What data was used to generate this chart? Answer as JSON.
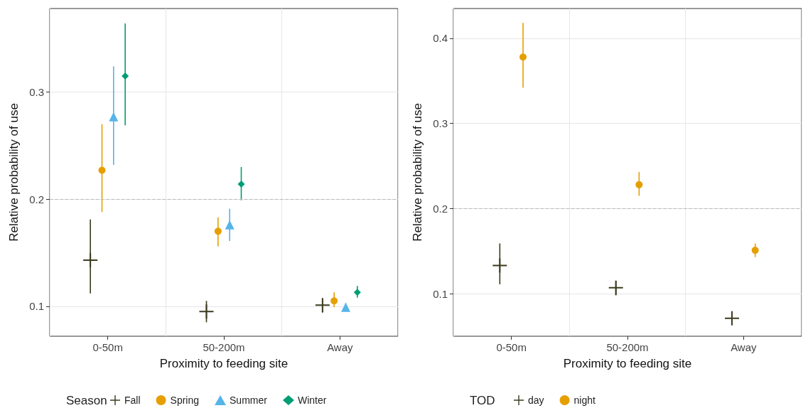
{
  "chart_data": [
    {
      "type": "scatter",
      "xlabel": "Proximity to feeding site",
      "ylabel": "Relative probability of use",
      "legend_title": "Season",
      "legend": "bottom",
      "grid": true,
      "categories": [
        "0-50m",
        "50-200m",
        "Away"
      ],
      "ylim": [
        0.072,
        0.378
      ],
      "yticks": [
        0.1,
        0.2,
        0.3
      ],
      "ref_lines": [
        {
          "axis": "y",
          "value": 0.2,
          "color": "#bbbbbb",
          "line_style": "dashed"
        }
      ],
      "series": [
        {
          "name": "Fall",
          "color": "#3b3b1e",
          "marker": "cross",
          "values": [
            0.143,
            0.095,
            0.101
          ],
          "errors": [
            [
              0.112,
              0.181
            ],
            [
              0.085,
              0.105
            ],
            [
              0.094,
              0.107
            ]
          ]
        },
        {
          "name": "Spring",
          "color": "#e69f00",
          "marker": "circle",
          "values": [
            0.227,
            0.17,
            0.105
          ],
          "errors": [
            [
              0.188,
              0.27
            ],
            [
              0.156,
              0.183
            ],
            [
              0.099,
              0.113
            ]
          ]
        },
        {
          "name": "Summer",
          "color": "#56b4e9",
          "marker": "triangle",
          "values": [
            0.277,
            0.176,
            0.099
          ],
          "errors": [
            [
              0.232,
              0.324
            ],
            [
              0.161,
              0.191
            ],
            [
              0.095,
              0.103
            ]
          ]
        },
        {
          "name": "Winter",
          "color": "#009e73",
          "marker": "diamond",
          "values": [
            0.315,
            0.214,
            0.113
          ],
          "errors": [
            [
              0.269,
              0.364
            ],
            [
              0.199,
              0.23
            ],
            [
              0.108,
              0.119
            ]
          ]
        }
      ]
    },
    {
      "type": "scatter",
      "xlabel": "Proximity to feeding site",
      "ylabel": "Relative probability of use",
      "legend_title": "TOD",
      "legend": "bottom",
      "grid": true,
      "categories": [
        "0-50m",
        "50-200m",
        "Away"
      ],
      "ylim": [
        0.05,
        0.435
      ],
      "yticks": [
        0.1,
        0.2,
        0.3,
        0.4
      ],
      "ref_lines": [
        {
          "axis": "y",
          "value": 0.2,
          "color": "#bbbbbb",
          "line_style": "dashed"
        }
      ],
      "series": [
        {
          "name": "day",
          "color": "#3b3b1e",
          "marker": "cross",
          "values": [
            0.133,
            0.107,
            0.071
          ],
          "errors": [
            [
              0.111,
              0.159
            ],
            [
              0.098,
              0.115
            ],
            [
              0.065,
              0.078
            ]
          ]
        },
        {
          "name": "night",
          "color": "#e69f00",
          "marker": "circle",
          "values": [
            0.378,
            0.228,
            0.151
          ],
          "errors": [
            [
              0.342,
              0.418
            ],
            [
              0.215,
              0.243
            ],
            [
              0.143,
              0.159
            ]
          ]
        }
      ]
    }
  ]
}
